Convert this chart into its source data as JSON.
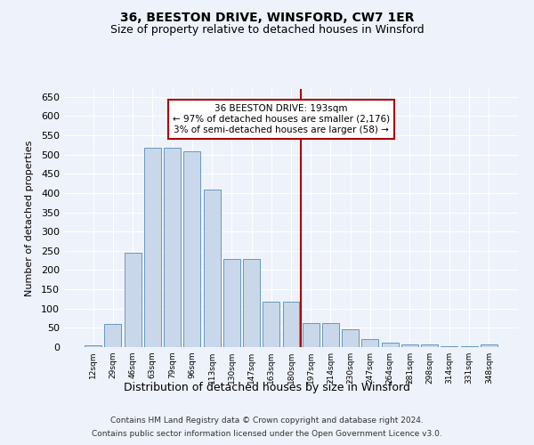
{
  "title": "36, BEESTON DRIVE, WINSFORD, CW7 1ER",
  "subtitle": "Size of property relative to detached houses in Winsford",
  "xlabel": "Distribution of detached houses by size in Winsford",
  "ylabel": "Number of detached properties",
  "categories": [
    "12sqm",
    "29sqm",
    "46sqm",
    "63sqm",
    "79sqm",
    "96sqm",
    "113sqm",
    "130sqm",
    "147sqm",
    "163sqm",
    "180sqm",
    "197sqm",
    "214sqm",
    "230sqm",
    "247sqm",
    "264sqm",
    "281sqm",
    "298sqm",
    "314sqm",
    "331sqm",
    "348sqm"
  ],
  "bar_heights": [
    5,
    60,
    245,
    517,
    517,
    508,
    410,
    228,
    228,
    118,
    118,
    63,
    63,
    47,
    20,
    12,
    8,
    8,
    3,
    3,
    7
  ],
  "bar_color": "#c8d8ea",
  "bar_edge_color": "#6699bb",
  "vline_bin_index": 11,
  "annotation_title": "36 BEESTON DRIVE: 193sqm",
  "annotation_line1": "← 97% of detached houses are smaller (2,176)",
  "annotation_line2": "3% of semi-detached houses are larger (58) →",
  "annotation_box_color": "#ffffff",
  "annotation_box_edge_color": "#aa0000",
  "vline_color": "#aa0000",
  "background_color": "#eef2fa",
  "grid_color": "#ffffff",
  "ylim": [
    0,
    670
  ],
  "yticks": [
    0,
    50,
    100,
    150,
    200,
    250,
    300,
    350,
    400,
    450,
    500,
    550,
    600,
    650
  ],
  "title_fontsize": 10,
  "subtitle_fontsize": 9,
  "ylabel_fontsize": 8,
  "xlabel_fontsize": 9,
  "footnote1": "Contains HM Land Registry data © Crown copyright and database right 2024.",
  "footnote2": "Contains public sector information licensed under the Open Government Licence v3.0."
}
